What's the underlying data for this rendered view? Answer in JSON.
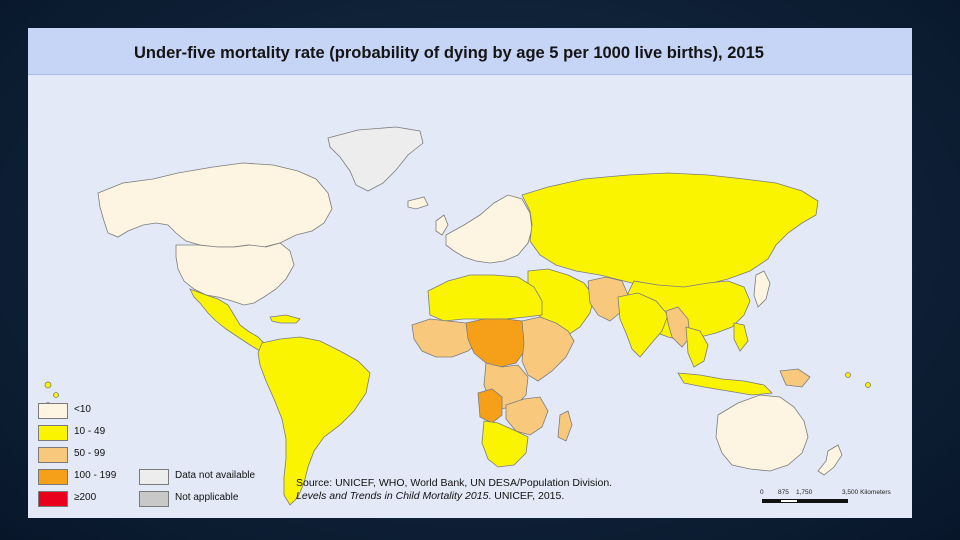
{
  "title": "Under-five mortality rate (probability of dying by age 5 per 1000 live births), 2015",
  "map": {
    "ocean_color": "#e3e9f7",
    "border_color": "#7c7c7c",
    "categories": {
      "lt10": {
        "label": "<10",
        "color": "#fdf5e2"
      },
      "c10_49": {
        "label": "10 - 49",
        "color": "#fbf400"
      },
      "c50_99": {
        "label": "50 - 99",
        "color": "#f8c97c"
      },
      "c100_199": {
        "label": "100 - 199",
        "color": "#f6a01a"
      },
      "gte200": {
        "label": "≥200",
        "color": "#e8001c"
      },
      "na": {
        "label": "Data not available",
        "color": "#ededed"
      },
      "not_applicable": {
        "label": "Not applicable",
        "color": "#c8c8c8"
      }
    }
  },
  "source": {
    "line1": "Source: UNICEF, WHO, World Bank, UN DESA/Population Division.",
    "line2_italic": "Levels and Trends in Child Mortality 2015",
    "line2_rest": ". UNICEF, 2015."
  },
  "scale": {
    "ticks": [
      "0",
      "875",
      "1,750",
      "3,500 Kilometers"
    ]
  }
}
